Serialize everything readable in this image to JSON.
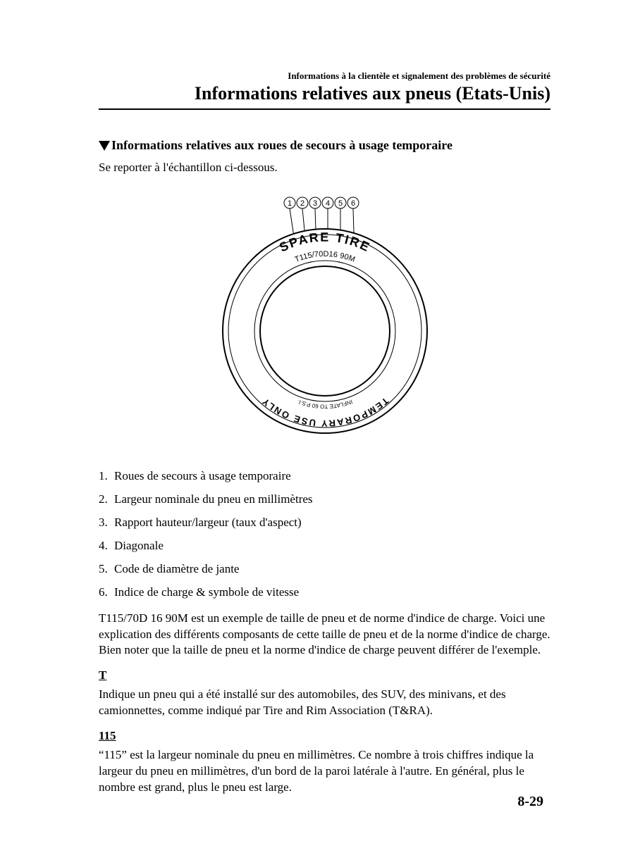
{
  "header": {
    "small": "Informations à la clientèle et signalement des problèmes de sécurité",
    "large": "Informations relatives aux pneus (Etats-Unis)"
  },
  "section": {
    "title": "Informations relatives aux roues de secours à usage temporaire",
    "intro": "Se reporter à l'échantillon ci-dessous."
  },
  "figure": {
    "callouts": [
      "1",
      "2",
      "3",
      "4",
      "5",
      "6"
    ],
    "top_text": "SPARE TIRE",
    "sub_text": "T115/70D16 90M",
    "bottom_arc_outer": "TEMPORARY USE ONLY",
    "bottom_arc_inner": "INFLATE TO 60 P.S.I.",
    "outer_radius": 145,
    "inner_radius": 92,
    "stroke": "#000000",
    "fill": "#ffffff"
  },
  "legend": [
    "Roues de secours à usage temporaire",
    "Largeur nominale du pneu en millimètres",
    "Rapport hauteur/largeur (taux d'aspect)",
    "Diagonale",
    "Code de diamètre de jante",
    "Indice de charge & symbole de vitesse"
  ],
  "para1": "T115/70D 16 90M est un exemple de taille de pneu et de norme d'indice de charge. Voici une explication des différents composants de cette taille de pneu et de la norme d'indice de charge. Bien noter que la taille de pneu et la norme d'indice de charge peuvent différer de l'exemple.",
  "sub": [
    {
      "head": "T",
      "body": "Indique un pneu qui a été installé sur des automobiles, des SUV, des minivans, et des camionnettes, comme indiqué par Tire and Rim Association (T&RA)."
    },
    {
      "head": "115",
      "body": "“115” est la largeur nominale du pneu en millimètres. Ce nombre à trois chiffres indique la largeur du pneu en millimètres, d'un bord de la paroi latérale à l'autre. En général, plus le nombre est grand, plus le pneu est large."
    }
  ],
  "page_number": "8-29"
}
